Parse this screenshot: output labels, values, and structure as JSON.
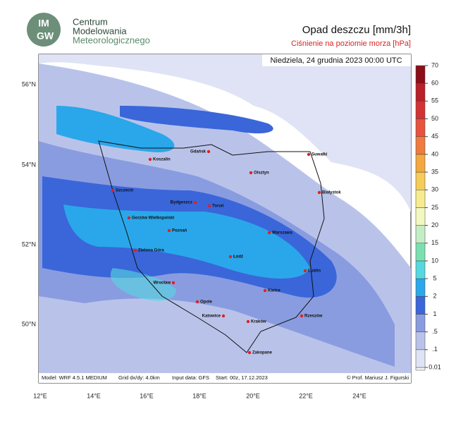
{
  "header": {
    "logo_top": "IM",
    "logo_bottom": "GW",
    "org_lines": [
      "Centrum",
      "Modelowania",
      "Meteorologicznego"
    ],
    "title": "Opad deszczu [mm/3h]",
    "subtitle": "Ciśnienie na poziomie morza [hPa]"
  },
  "map": {
    "date": "Niedziela, 24 grudnia 2023 00:00 UTC",
    "lat_labels": [
      "56°N",
      "54°N",
      "52°N",
      "50°N"
    ],
    "lon_labels": [
      "12°E",
      "14°E",
      "16°E",
      "18°E",
      "20°E",
      "22°E",
      "24°E"
    ],
    "cities": [
      "Koszalin",
      "Gdańsk",
      "Suwałki",
      "Olsztyn",
      "Szczecin",
      "Białystok",
      "Bydgoszcz",
      "Toruń",
      "Gorzów Wielkopolski",
      "Poznań",
      "Warszawa",
      "Zielona Góra",
      "Łódź",
      "Lublin",
      "Wrocław",
      "Kielce",
      "Opole",
      "Katowice",
      "Rzeszów",
      "Kraków",
      "Zakopane"
    ],
    "footer": [
      "Model: WRF 4.5.1 MEDIUM",
      "Grid dx/dy: 4.0km",
      "Input data: GFS",
      "Start: 00z, 17.12.2023"
    ],
    "credit": "© Prof. Mariusz J. Figurski"
  },
  "colorbar": {
    "levels": [
      0.01,
      {
        "value": 0.1,
        "label": ".1"
      },
      {
        "value": 0.5,
        "label": ".5"
      },
      1,
      2,
      5,
      10,
      15,
      20,
      25,
      30,
      35,
      40,
      45,
      50,
      55,
      60,
      70
    ],
    "colors": [
      "#dfe3f5",
      "#b9c3ea",
      "#8a9ce0",
      "#3a66d9",
      "#2aa7ea",
      "#55d8e0",
      "#7be0b0",
      "#c4edc4",
      "#f3f8c0",
      "#f6ec8f",
      "#f6cb5a",
      "#f3a840",
      "#ef7b3e",
      "#e8533e",
      "#d33234",
      "#b8202a",
      "#8c0e18"
    ]
  }
}
